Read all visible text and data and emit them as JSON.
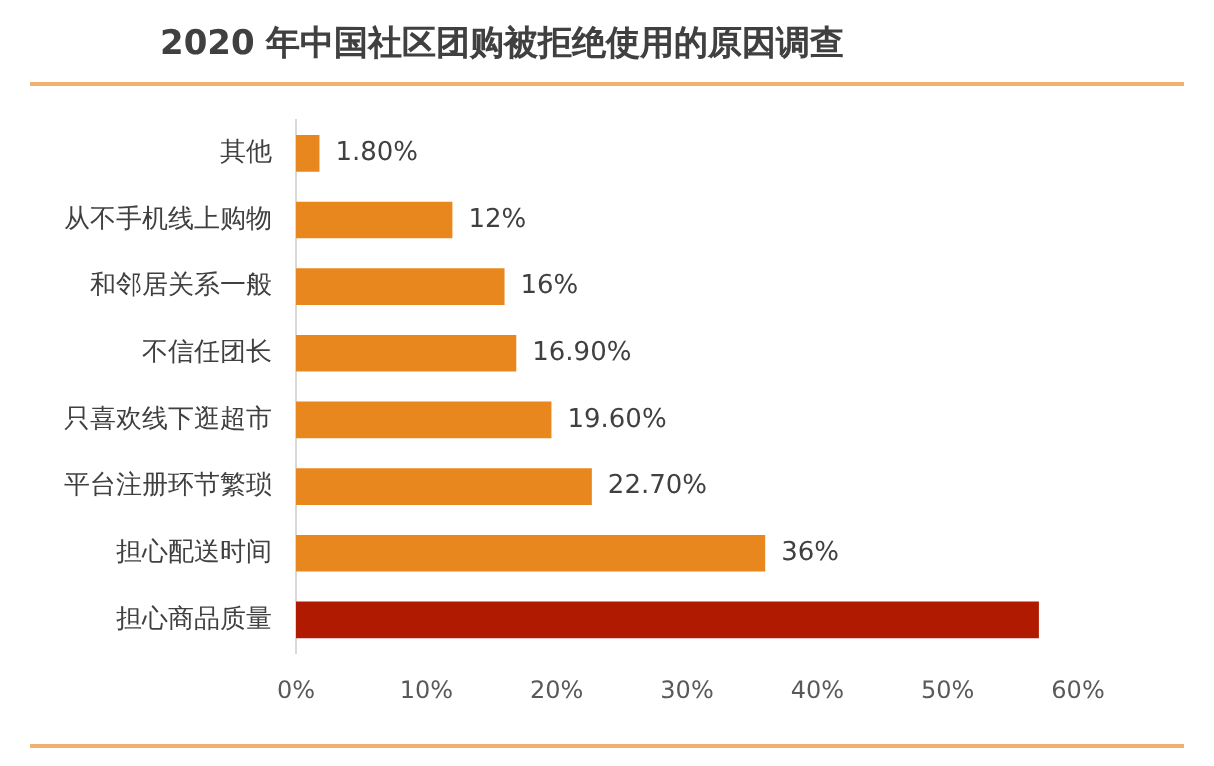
{
  "chart_data": {
    "type": "bar",
    "orientation": "horizontal",
    "title": "2020 年中国社区团购被拒绝使用的原因调查",
    "categories": [
      "其他",
      "从不手机线上购物",
      "和邻居关系一般",
      "不信任团长",
      "只喜欢线下逛超市",
      "平台注册环节繁琐",
      "担心配送时间",
      "担心商品质量"
    ],
    "values": [
      1.8,
      12,
      16,
      16.9,
      19.6,
      22.7,
      36,
      57
    ],
    "colors": [
      "#e8871e",
      "#e8871e",
      "#e8871e",
      "#e8871e",
      "#e8871e",
      "#e8871e",
      "#e8871e",
      "#b01a00"
    ],
    "value_labels": [
      "1.80%",
      "12%",
      "16%",
      "16.90%",
      "19.60%",
      "22.70%",
      "36%",
      null
    ],
    "xlim": [
      0,
      60
    ],
    "xticks": [
      {
        "value": 0,
        "label": "0%"
      },
      {
        "value": 10,
        "label": "10%"
      },
      {
        "value": 20,
        "label": "20%"
      },
      {
        "value": 30,
        "label": "30%"
      },
      {
        "value": 40,
        "label": "40%"
      },
      {
        "value": 50,
        "label": "50%"
      },
      {
        "value": 60,
        "label": "60%"
      }
    ],
    "grid": false,
    "legend": false
  }
}
